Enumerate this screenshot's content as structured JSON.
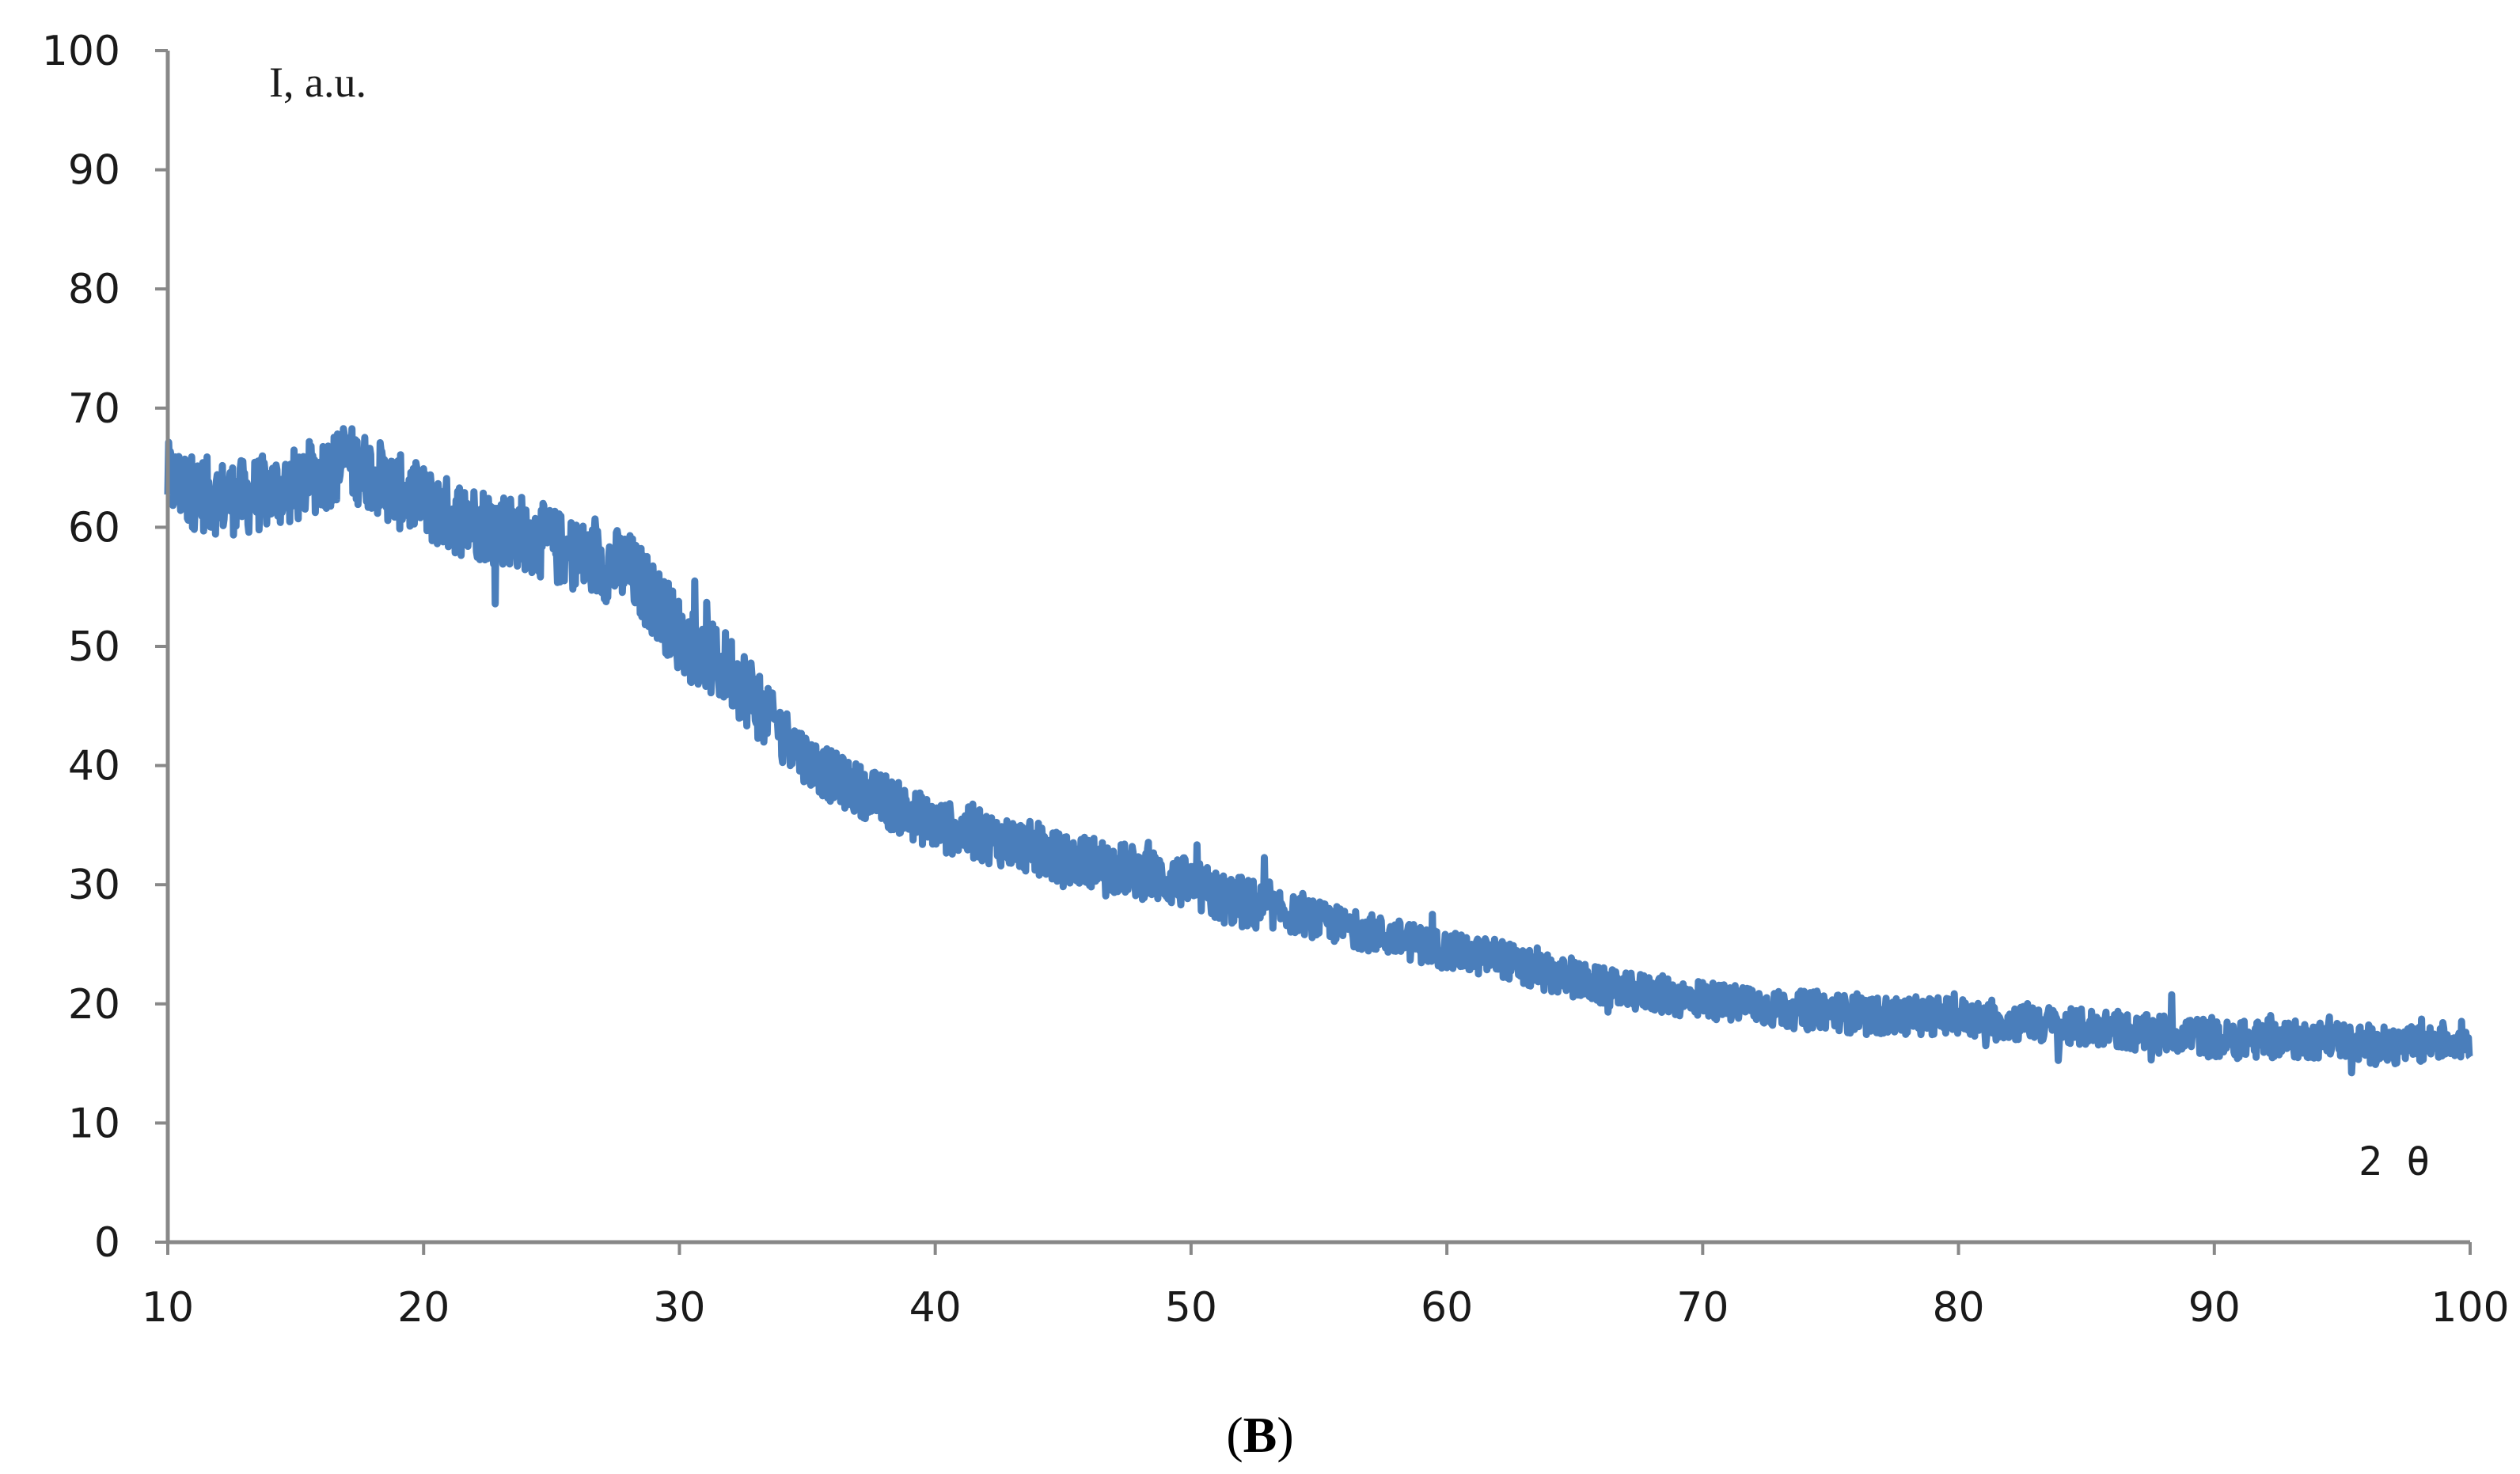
{
  "chart_data": {
    "type": "line",
    "xlabel": "2 θ",
    "ylabel": "I, a.u.",
    "xlim": [
      10,
      100
    ],
    "ylim": [
      0,
      100
    ],
    "xticks": [
      10,
      20,
      30,
      40,
      50,
      60,
      70,
      80,
      90,
      100
    ],
    "yticks": [
      0,
      10,
      20,
      30,
      40,
      50,
      60,
      70,
      80,
      90,
      100
    ],
    "grid": false,
    "line_color": "#4a7ebb",
    "series": [
      {
        "x": [
          10,
          11,
          12,
          13,
          14,
          15,
          16,
          17,
          18,
          19,
          20,
          21,
          22,
          23,
          24,
          25,
          26,
          27,
          28,
          29,
          30,
          31,
          32,
          33,
          34,
          35,
          36,
          37,
          38,
          39,
          40,
          41,
          42,
          43,
          44,
          45,
          46,
          47,
          48,
          49,
          50,
          51,
          52,
          53,
          54,
          55,
          56,
          57,
          58,
          59,
          60,
          61,
          62,
          63,
          64,
          65,
          66,
          67,
          68,
          69,
          70,
          71,
          72,
          73,
          74,
          75,
          76,
          77,
          78,
          79,
          80,
          81,
          82,
          83,
          84,
          85,
          86,
          87,
          88,
          89,
          90,
          91,
          92,
          93,
          94,
          95,
          96,
          97,
          98,
          99,
          100
        ],
        "values": [
          64,
          63,
          62.5,
          62.5,
          63,
          63.5,
          64.5,
          65.5,
          64.5,
          63,
          62,
          61,
          60.5,
          60,
          59.5,
          58.5,
          57.5,
          57,
          56.5,
          54,
          51,
          49,
          48,
          45.5,
          43,
          40.5,
          39,
          38,
          37,
          36,
          35,
          34.5,
          34,
          33.5,
          33,
          32,
          32,
          31.5,
          31,
          30.5,
          30,
          29,
          28.5,
          28,
          27.5,
          27,
          26.5,
          26,
          25.5,
          25,
          24.5,
          24,
          24,
          23,
          22.5,
          22,
          21.5,
          21,
          21,
          20.5,
          20.5,
          20,
          20,
          19.5,
          19.5,
          19.5,
          19,
          19,
          19,
          19,
          19,
          18.5,
          18.5,
          18.5,
          18,
          18,
          18,
          17.5,
          17.5,
          17.5,
          17,
          17,
          17,
          17,
          17,
          17,
          16.5,
          16.5,
          16.5,
          17,
          17
        ]
      }
    ]
  },
  "caption": {
    "open": "(",
    "letter": "B",
    "close": ")"
  }
}
